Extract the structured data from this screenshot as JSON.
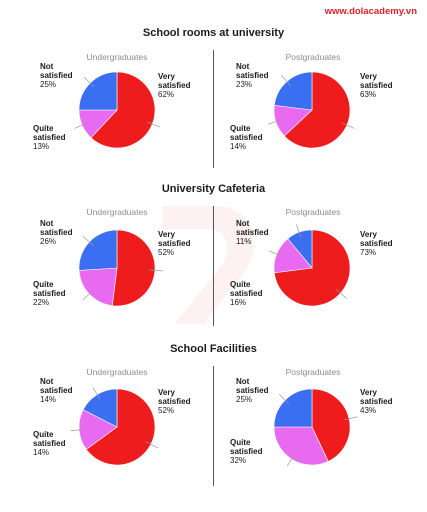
{
  "brand": "www.dolacademy.vn",
  "colors": {
    "very_satisfied": "#ee1c1c",
    "quite_satisfied": "#e86af0",
    "not_satisfied": "#3a6ff2"
  },
  "chart_data": [
    {
      "type": "pie",
      "title": "School rooms at university",
      "charts": [
        {
          "subtitle": "Undergraduates",
          "slices": [
            {
              "name": "Very satisfied",
              "label_1": "Very",
              "label_2": "satisfied",
              "value": 62,
              "pct": "62%"
            },
            {
              "name": "Quite satisfied",
              "label_1": "Quite",
              "label_2": "satisfied",
              "value": 13,
              "pct": "13%"
            },
            {
              "name": "Not satisfied",
              "label_1": "Not",
              "label_2": "satisfied",
              "value": 25,
              "pct": "25%"
            }
          ]
        },
        {
          "subtitle": "Postgraduates",
          "slices": [
            {
              "name": "Very satisfied",
              "label_1": "Very",
              "label_2": "satisfied",
              "value": 63,
              "pct": "63%"
            },
            {
              "name": "Quite satisfied",
              "label_1": "Quite",
              "label_2": "satisfied",
              "value": 14,
              "pct": "14%"
            },
            {
              "name": "Not satisfied",
              "label_1": "Not",
              "label_2": "satisfied",
              "value": 23,
              "pct": "23%"
            }
          ]
        }
      ]
    },
    {
      "type": "pie",
      "title": "University Cafeteria",
      "charts": [
        {
          "subtitle": "Undergraduates",
          "slices": [
            {
              "name": "Very satisfied",
              "label_1": "Very",
              "label_2": "satisfied",
              "value": 52,
              "pct": "52%"
            },
            {
              "name": "Quite satisfied",
              "label_1": "Quite",
              "label_2": "satisfied",
              "value": 22,
              "pct": "22%"
            },
            {
              "name": "Not satisfied",
              "label_1": "Not",
              "label_2": "satisfied",
              "value": 26,
              "pct": "26%"
            }
          ]
        },
        {
          "subtitle": "Postgraduates",
          "slices": [
            {
              "name": "Very satisfied",
              "label_1": "Very",
              "label_2": "satisfied",
              "value": 73,
              "pct": "73%"
            },
            {
              "name": "Quite satisfied",
              "label_1": "Quite",
              "label_2": "satisfied",
              "value": 16,
              "pct": "16%"
            },
            {
              "name": "Not satisfied",
              "label_1": "Not",
              "label_2": "satisfied",
              "value": 11,
              "pct": "11%"
            }
          ]
        }
      ]
    },
    {
      "type": "pie",
      "title": "School Facilities",
      "charts": [
        {
          "subtitle": "Undergraduates",
          "slices": [
            {
              "name": "Very satisfied",
              "label_1": "Very",
              "label_2": "satisfied",
              "value": 52,
              "pct": "52%"
            },
            {
              "name": "Quite satisfied",
              "label_1": "Quite",
              "label_2": "satisfied",
              "value": 14,
              "pct": "14%"
            },
            {
              "name": "Not satisfied",
              "label_1": "Not",
              "label_2": "satisfied",
              "value": 14,
              "pct": "14%"
            }
          ]
        },
        {
          "subtitle": "Postgraduates",
          "slices": [
            {
              "name": "Very satisfied",
              "label_1": "Very",
              "label_2": "satisfied",
              "value": 43,
              "pct": "43%"
            },
            {
              "name": "Quite satisfied",
              "label_1": "Quite",
              "label_2": "satisfied",
              "value": 32,
              "pct": "32%"
            },
            {
              "name": "Not satisfied",
              "label_1": "Not",
              "label_2": "satisfied",
              "value": 25,
              "pct": "25%"
            }
          ]
        }
      ]
    }
  ]
}
